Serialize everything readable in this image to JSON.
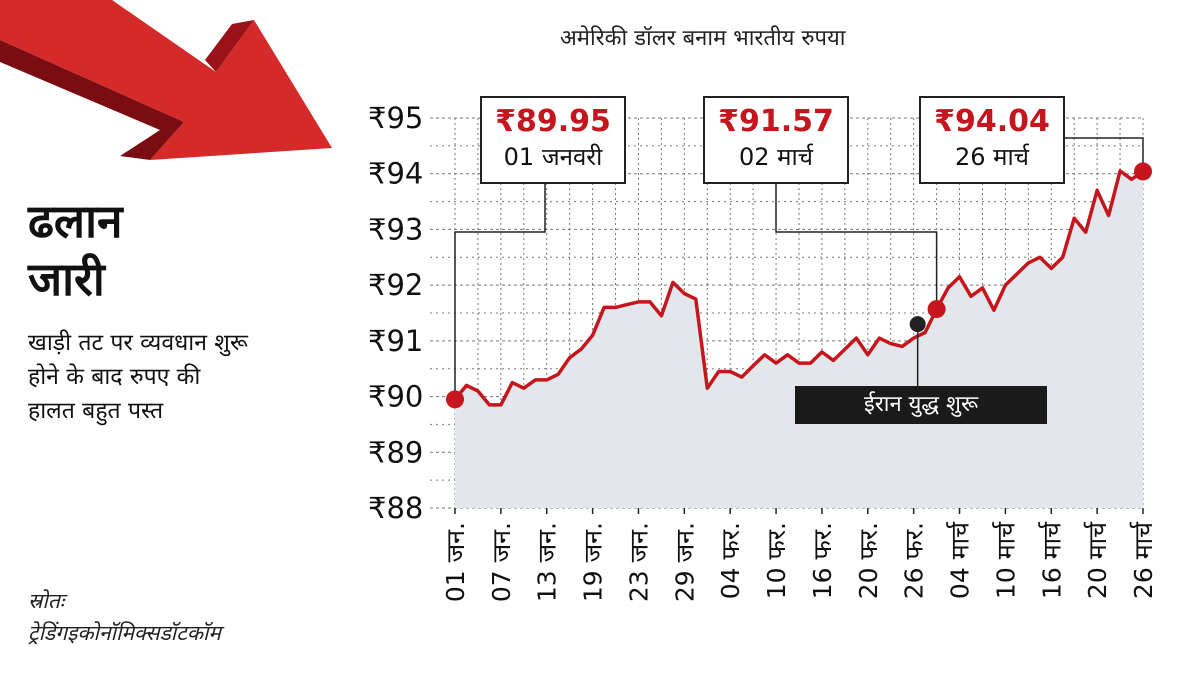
{
  "side": {
    "title_line1": "ढलान",
    "title_line2": "जारी",
    "subtitle": "खाड़ी तट पर व्यवधान शुरू होने के बाद रुपए की हालत बहुत पस्त",
    "source_label": "स्रोतः",
    "source_value": "ट्रेडिंगइकोनॉमिक्सडॉटकॉम"
  },
  "colors": {
    "line": "#c4161c",
    "area": "#e3e6ea",
    "grid": "#777777",
    "event_dot": "#222222"
  },
  "callouts": [
    {
      "value": "₹89.95",
      "date": "01 जनवरी"
    },
    {
      "value": "₹91.57",
      "date": "02 मार्च"
    },
    {
      "value": "₹94.04",
      "date": "26 मार्च"
    }
  ],
  "event": {
    "label": "ईरान युद्ध शुरू"
  },
  "chart_data": {
    "type": "area",
    "title": "अमेरिकी डॉलर बनाम भारतीय रुपया",
    "xlabel": "",
    "ylabel": "",
    "ylim": [
      88,
      95
    ],
    "yticks": [
      "₹88",
      "₹89",
      "₹90",
      "₹91",
      "₹92",
      "₹93",
      "₹94",
      "₹95"
    ],
    "xticks": [
      "01 जन.",
      "07 जन.",
      "13 जन.",
      "19 जन.",
      "23 जन.",
      "29 जन.",
      "04 फर.",
      "10 फर.",
      "16 फर.",
      "20 फर.",
      "26 फर.",
      "04 मार्च",
      "10 मार्च",
      "16 मार्च",
      "20 मार्च",
      "26 मार्च"
    ],
    "grid": true,
    "series": [
      {
        "values": [
          89.95,
          90.2,
          90.1,
          89.85,
          89.85,
          90.25,
          90.15,
          90.3,
          90.3,
          90.4,
          90.7,
          90.85,
          91.1,
          91.6,
          91.6,
          91.65,
          91.7,
          91.7,
          91.45,
          92.05,
          91.85,
          91.75,
          90.15,
          90.45,
          90.45,
          90.35,
          90.55,
          90.75,
          90.6,
          90.75,
          90.6,
          90.6,
          90.8,
          90.65,
          90.85,
          91.05,
          90.75,
          91.05,
          90.95,
          90.9,
          91.05,
          91.15,
          91.57,
          91.95,
          92.15,
          91.8,
          91.95,
          91.55,
          92.0,
          92.2,
          92.4,
          92.5,
          92.3,
          92.5,
          93.2,
          92.95,
          93.7,
          93.25,
          94.05,
          93.9,
          94.04
        ]
      }
    ],
    "highlight_points": [
      {
        "label": "01 जनवरी",
        "y": 89.95
      },
      {
        "label": "02 मार्च",
        "y": 91.57
      },
      {
        "label": "26 मार्च",
        "y": 94.04
      }
    ],
    "event_point": {
      "label": "ईरान युद्ध शुरू",
      "y": 91.3
    }
  }
}
